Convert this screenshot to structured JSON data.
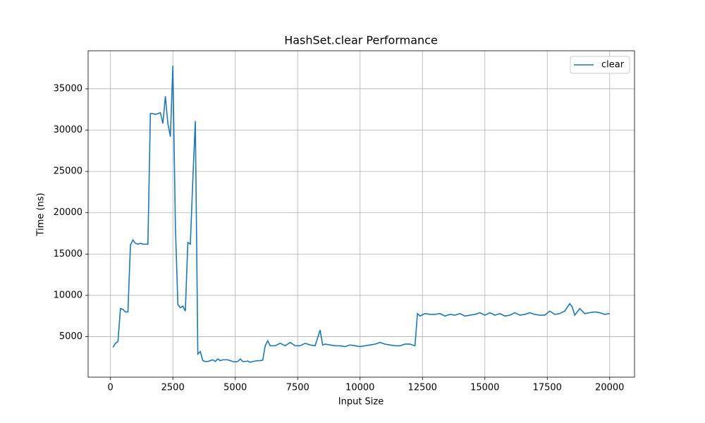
{
  "chart_data": {
    "type": "line",
    "title": "HashSet.clear Performance",
    "x_label": "Input Size",
    "y_label": "Time (ns)",
    "xlim": [
      -895,
      20995
    ],
    "ylim": [
      100,
      39600
    ],
    "xticks": [
      0,
      2500,
      5000,
      7500,
      10000,
      12500,
      15000,
      17500,
      20000
    ],
    "yticks": [
      5000,
      10000,
      15000,
      20000,
      25000,
      30000,
      35000
    ],
    "grid": true,
    "legend": "upper right",
    "x": [
      100,
      200,
      300,
      400,
      500,
      600,
      700,
      800,
      900,
      1000,
      1100,
      1200,
      1300,
      1400,
      1500,
      1600,
      1700,
      1800,
      1900,
      2000,
      2100,
      2200,
      2300,
      2400,
      2500,
      2600,
      2700,
      2800,
      2900,
      3000,
      3100,
      3200,
      3300,
      3400,
      3500,
      3600,
      3700,
      3800,
      3900,
      4000,
      4100,
      4200,
      4300,
      4400,
      4500,
      4600,
      4700,
      4800,
      4900,
      5000,
      5100,
      5200,
      5300,
      5400,
      5500,
      5600,
      5700,
      5800,
      5900,
      6000,
      6100,
      6200,
      6300,
      6400,
      6600,
      6800,
      7000,
      7200,
      7400,
      7600,
      7800,
      8000,
      8200,
      8400,
      8500,
      8600,
      8800,
      9000,
      9200,
      9400,
      9600,
      9800,
      10000,
      10200,
      10400,
      10600,
      10800,
      11000,
      11200,
      11400,
      11600,
      11800,
      12000,
      12200,
      12300,
      12400,
      12600,
      12800,
      13000,
      13200,
      13400,
      13600,
      13800,
      14000,
      14200,
      14400,
      14600,
      14800,
      15000,
      15200,
      15400,
      15600,
      15800,
      16000,
      16200,
      16400,
      16600,
      16800,
      17000,
      17200,
      17400,
      17600,
      17800,
      18000,
      18200,
      18400,
      18500,
      18600,
      18800,
      19000,
      19200,
      19400,
      19600,
      19800,
      20000
    ],
    "series": [
      {
        "name": "clear",
        "color": "#1f77b4",
        "values": [
          3700,
          4200,
          4400,
          8400,
          8300,
          8000,
          8000,
          16100,
          16700,
          16300,
          16200,
          16300,
          16200,
          16200,
          16200,
          32000,
          32000,
          31900,
          32000,
          32100,
          30800,
          34100,
          30800,
          29200,
          37800,
          18500,
          8900,
          8500,
          8700,
          8100,
          16400,
          16200,
          24000,
          31100,
          2900,
          3200,
          2100,
          2000,
          2000,
          2100,
          2200,
          2000,
          2300,
          2100,
          2200,
          2200,
          2200,
          2100,
          2000,
          1950,
          2000,
          2300,
          2000,
          2000,
          2050,
          1900,
          2000,
          2050,
          2100,
          2100,
          2150,
          3900,
          4500,
          3900,
          3900,
          4200,
          3900,
          4300,
          3900,
          3900,
          4200,
          4000,
          3900,
          5800,
          4000,
          4100,
          4000,
          3900,
          3900,
          3800,
          4000,
          3900,
          3800,
          3900,
          4000,
          4100,
          4300,
          4100,
          4000,
          3900,
          3900,
          4100,
          4100,
          3900,
          7800,
          7500,
          7800,
          7700,
          7700,
          7800,
          7500,
          7700,
          7600,
          7800,
          7500,
          7600,
          7700,
          7900,
          7600,
          7900,
          7600,
          7800,
          7500,
          7600,
          7900,
          7600,
          7700,
          7900,
          7700,
          7600,
          7600,
          8100,
          7700,
          7800,
          8100,
          9000,
          8600,
          7600,
          8400,
          7800,
          7900,
          8000,
          7900,
          7700,
          7800
        ]
      }
    ]
  }
}
